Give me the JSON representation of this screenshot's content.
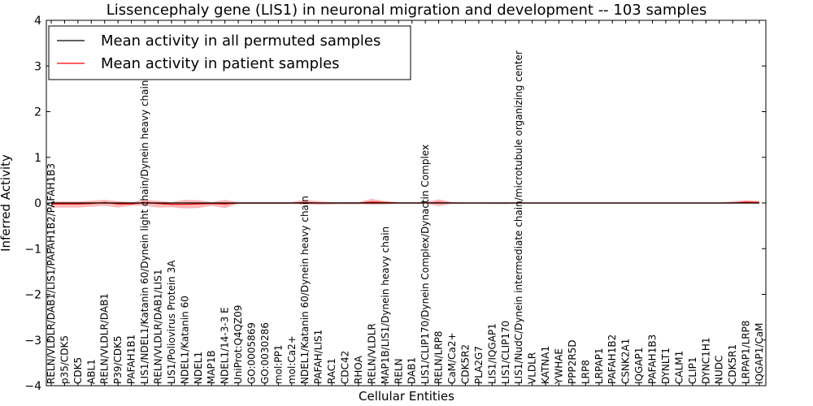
{
  "chart_data": {
    "type": "line",
    "title": "Lissencephaly gene (LIS1) in neuronal migration and development -- 103 samples",
    "xlabel": "Cellular Entities",
    "ylabel": "Inferred Activity",
    "ylim": [
      -4,
      4
    ],
    "yticks": [
      -4,
      -3,
      -2,
      -1,
      0,
      1,
      2,
      3,
      4
    ],
    "ytick_labels": [
      "−4",
      "−3",
      "−2",
      "−1",
      "0",
      "1",
      "2",
      "3",
      "4"
    ],
    "grid": false,
    "legend_position": "top-left",
    "categories": [
      "RELN/VLDLR/DAB1/LIS1/PAFAH1B2/PAFAH1B3",
      "p35/CDK5",
      "CDK5",
      "ABL1",
      "RELN/VLDLR/DAB1",
      "P39/CDK5",
      "PAFAH1B1",
      "LIS1/NDEL1/Katanin 60/Dynein light chain/Dynein heavy chain",
      "RELN/VLDLR/DAB1/LIS1",
      "LIS1/Poliovirus Protein 3A",
      "NDEL1/Katanin 60",
      "NDEL1",
      "MAP1B",
      "NDEL1/14-3-3 E",
      "UniProt:Q4QZ09",
      "GO:0005869",
      "GO:0030286",
      "mol:PP1",
      "mol:Ca2+",
      "NDEL1/Katanin 60/Dynein heavy chain",
      "PAFAH/LIS1",
      "RAC1",
      "CDC42",
      "RHOA",
      "RELN/VLDLR",
      "MAP1B/LIS1/Dynein heavy chain",
      "RELN",
      "DAB1",
      "LIS1/CLIP170/Dynein Complex/Dynactin Complex",
      "RELN/LRP8",
      "CaM/Ca2+",
      "CDK5R2",
      "PLA2G7",
      "LIS1/IQGAP1",
      "LIS1/CLIP170",
      "LIS1/NudC/Dynein intermediate chain/microtubule organizing center",
      "VLDLR",
      "KATNA1",
      "YWHAE",
      "PPP2R5D",
      "LRP8",
      "LRPAP1",
      "PAFAH1B2",
      "CSNK2A1",
      "IQGAP1",
      "PAFAH1B3",
      "DYNLT1",
      "CALM1",
      "CLIP1",
      "DYNC1H1",
      "NUDC",
      "CDK5R1",
      "LRPAP1/LRP8",
      "IQGAP1/CaM"
    ],
    "series": [
      {
        "name": "Mean activity in all permuted samples",
        "color": "#000000",
        "values": [
          0,
          0,
          0,
          0,
          0,
          0,
          0,
          0,
          0,
          0,
          0,
          0,
          0,
          0,
          0,
          0,
          0,
          0,
          0,
          0,
          0,
          0,
          0,
          0,
          0,
          0,
          0,
          0,
          0,
          0,
          0,
          0,
          0,
          0,
          0,
          0,
          0,
          0,
          0,
          0,
          0,
          0,
          0,
          0,
          0,
          0,
          0,
          0,
          0,
          0,
          0,
          0,
          0,
          0
        ],
        "band_lower": [
          -0.01,
          -0.01,
          -0.01,
          -0.01,
          -0.01,
          -0.01,
          -0.01,
          -0.01,
          -0.01,
          -0.01,
          -0.01,
          -0.01,
          -0.01,
          -0.01,
          -0.01,
          -0.01,
          -0.01,
          -0.01,
          -0.01,
          -0.01,
          -0.01,
          -0.01,
          -0.03,
          -0.03,
          -0.01,
          -0.01,
          -0.01,
          -0.01,
          -0.01,
          -0.01,
          -0.01,
          -0.01,
          -0.01,
          -0.03,
          -0.03,
          -0.01,
          -0.01,
          -0.01,
          -0.01,
          -0.01,
          -0.01,
          -0.01,
          -0.01,
          -0.01,
          -0.01,
          -0.01,
          -0.01,
          -0.01,
          -0.01,
          -0.01,
          -0.01,
          -0.01,
          -0.01,
          -0.01
        ],
        "band_upper": [
          0.01,
          0.01,
          0.01,
          0.01,
          0.01,
          0.01,
          0.01,
          0.01,
          0.01,
          0.01,
          0.01,
          0.01,
          0.01,
          0.01,
          0.01,
          0.01,
          0.01,
          0.01,
          0.01,
          0.01,
          0.01,
          0.01,
          0.01,
          0.01,
          0.01,
          0.01,
          0.01,
          0.01,
          0.01,
          0.01,
          0.01,
          0.01,
          0.01,
          0.01,
          0.01,
          0.01,
          0.01,
          0.01,
          0.01,
          0.01,
          0.01,
          0.01,
          0.01,
          0.01,
          0.01,
          0.01,
          0.01,
          0.01,
          0.01,
          0.01,
          0.01,
          0.01,
          0.01,
          0.01
        ],
        "band_color": "#bbbbbb"
      },
      {
        "name": "Mean activity in patient samples",
        "color": "#ff0000",
        "values": [
          -0.02,
          -0.02,
          -0.02,
          -0.01,
          0.01,
          -0.02,
          -0.02,
          0.01,
          -0.01,
          -0.03,
          -0.03,
          -0.02,
          -0.01,
          -0.02,
          0,
          0,
          0,
          0,
          0,
          0.01,
          0,
          0,
          0,
          0,
          0.02,
          0.01,
          0,
          0,
          0,
          0.01,
          0,
          0,
          0,
          0,
          0,
          0,
          0,
          0,
          0,
          0,
          0,
          0,
          0,
          0,
          0,
          0,
          0,
          0,
          0,
          0,
          0,
          0,
          0.02,
          0.01
        ],
        "band_lower": [
          -0.1,
          -0.1,
          -0.1,
          -0.08,
          -0.06,
          -0.1,
          -0.06,
          -0.06,
          -0.1,
          -0.09,
          -0.12,
          -0.11,
          -0.06,
          -0.11,
          -0.02,
          -0.02,
          -0.02,
          -0.02,
          -0.02,
          -0.03,
          -0.04,
          -0.03,
          -0.02,
          -0.02,
          -0.04,
          -0.03,
          -0.01,
          -0.01,
          -0.01,
          -0.07,
          -0.02,
          -0.01,
          -0.01,
          -0.01,
          -0.01,
          -0.01,
          -0.01,
          -0.01,
          -0.01,
          -0.01,
          -0.01,
          -0.01,
          -0.01,
          -0.01,
          -0.01,
          -0.01,
          -0.01,
          -0.01,
          -0.01,
          -0.01,
          -0.01,
          -0.01,
          -0.01,
          -0.01
        ],
        "band_upper": [
          0.03,
          0.03,
          0.03,
          0.05,
          0.07,
          0.04,
          0.02,
          0.07,
          0.05,
          0.02,
          0.07,
          0.06,
          0.02,
          0.07,
          0.02,
          0.02,
          0.02,
          0.02,
          0.02,
          0.07,
          0.04,
          0.02,
          0.02,
          0.02,
          0.09,
          0.04,
          0.02,
          0.02,
          0.02,
          0.08,
          0.02,
          0.01,
          0.01,
          0.01,
          0.01,
          0.01,
          0.01,
          0.01,
          0.01,
          0.01,
          0.01,
          0.01,
          0.01,
          0.01,
          0.01,
          0.01,
          0.01,
          0.01,
          0.01,
          0.01,
          0.01,
          0.04,
          0.06,
          0.05
        ],
        "band_color": "#f7a0a0"
      }
    ]
  }
}
